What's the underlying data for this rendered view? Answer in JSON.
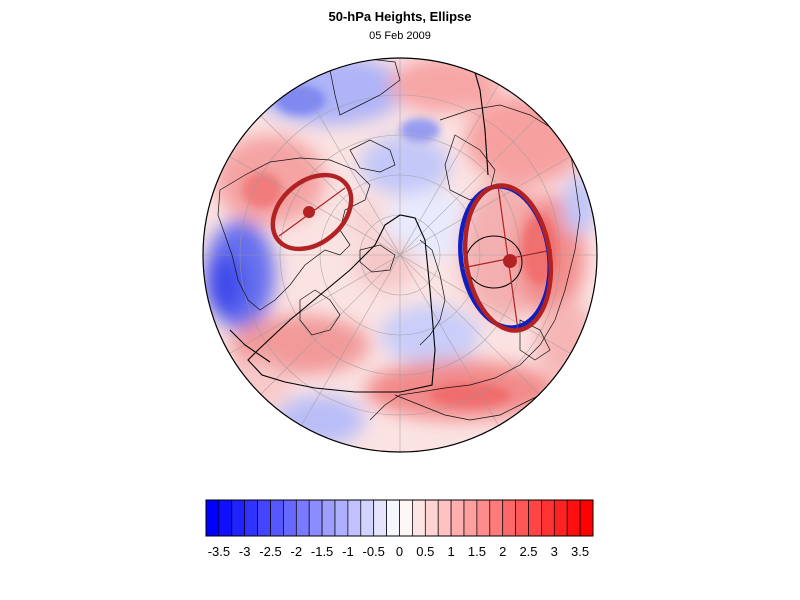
{
  "title": "50-hPa Heights, Ellipse",
  "subtitle": "05 Feb 2009",
  "colorbar": {
    "levels": [
      "-3.5",
      "-3",
      "-2.5",
      "-2",
      "-1.5",
      "-1",
      "-0.5",
      "0",
      "0.5",
      "1",
      "1.5",
      "2",
      "2.5",
      "3",
      "3.5"
    ],
    "min": -3.75,
    "max": 3.75,
    "step": 0.25,
    "negative_color": "#0000ff",
    "positive_color": "#ff0000",
    "neutral_color": "#ffffff"
  },
  "map": {
    "projection": "polar stereographic (north pole)",
    "ellipse_color": "#b22222",
    "contour_color": "#000000",
    "blue_contour_color": "#0000cc"
  }
}
